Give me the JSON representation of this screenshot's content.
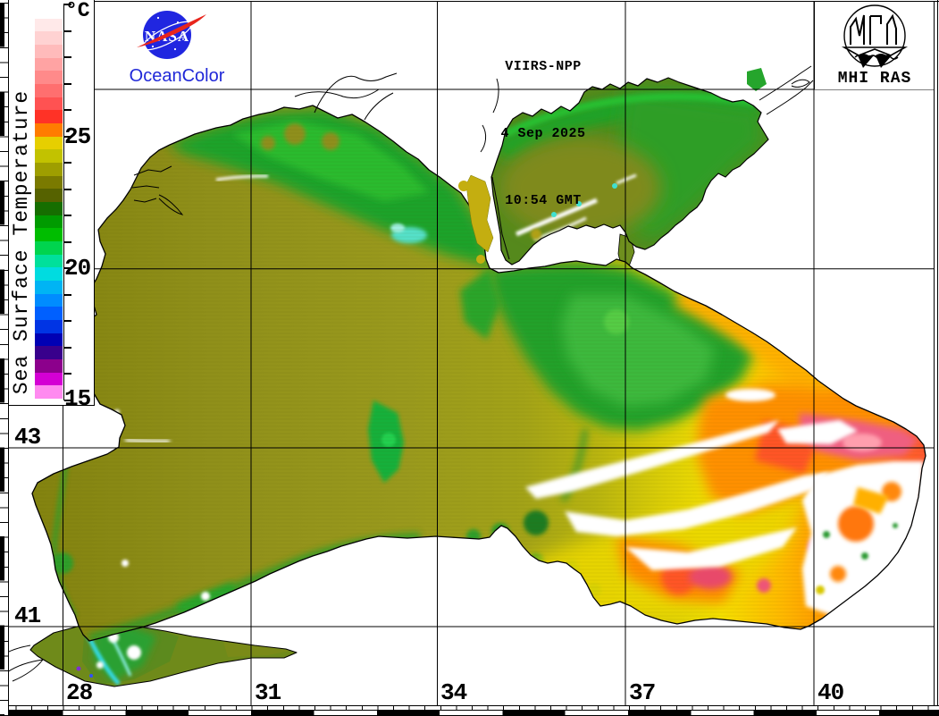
{
  "header": {
    "satellite": "VIIRS-NPP",
    "date": "4 Sep 2025",
    "time": "10:54 GMT"
  },
  "branding": {
    "nasa": "NASA",
    "oceancolor": "OceanColor",
    "mhi_ras": "MHI RAS"
  },
  "colorbar": {
    "title": "Sea Surface Temperature",
    "unit": "°C",
    "tick_labels": [
      "25",
      "20",
      "15"
    ],
    "range_note_min": "15",
    "range_note_max": "30",
    "colors": [
      "#ffffff",
      "#ffe9e9",
      "#ffd2d2",
      "#ffbbbb",
      "#ffa3a3",
      "#ff8a8a",
      "#ff6f6f",
      "#ff5252",
      "#ff3226",
      "#ff7c00",
      "#e6cf00",
      "#c2c200",
      "#9e9e00",
      "#7a7a00",
      "#566200",
      "#166e00",
      "#009b00",
      "#00bd00",
      "#00d44e",
      "#00e09b",
      "#00dce0",
      "#00b4f4",
      "#008cff",
      "#0060ff",
      "#0034e4",
      "#0000b4",
      "#38008c",
      "#8c008c",
      "#d400d4",
      "#ff8af0"
    ]
  },
  "grid": {
    "latitude_labels": [
      "43",
      "41"
    ],
    "longitude_labels": [
      "28",
      "31",
      "34",
      "37",
      "40"
    ]
  },
  "map_colors": {
    "basin_olive": "#9a9a1d",
    "shelf_green": "#1fa329",
    "warm_yellow": "#f0e000",
    "warm_orange": "#ff8800",
    "hot_pink": "#ef5f80",
    "cloud_white": "#ffffff",
    "cold_cyan": "#55e0c8"
  }
}
